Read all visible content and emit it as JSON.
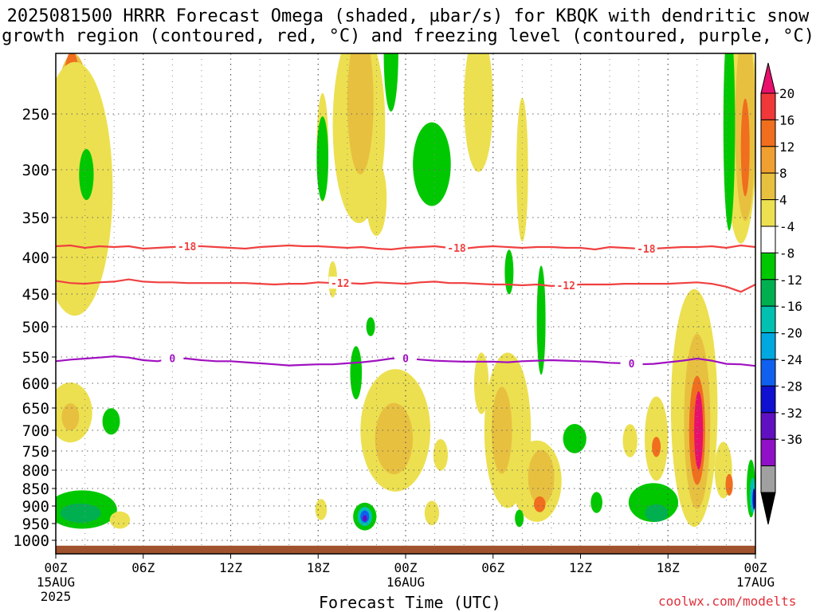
{
  "title_line1": "2025081500 HRRR Forecast Omega (shaded, µbar/s) for KBQK with dendritic snow",
  "title_line2": "growth region (contoured, red, °C) and freezing level (contoured, purple, °C)",
  "credit": "coolwx.com/modelts",
  "chart_data": {
    "type": "heatmap",
    "title": "2025081500 HRRR Forecast Omega (shaded, µbar/s) for KBQK with dendritic snow growth region (contoured, red, °C) and freezing level (contoured, purple, °C)",
    "xlabel": "Forecast Time (UTC)",
    "ylabel": "",
    "x_ticks": [
      {
        "hour": 0,
        "label": "00Z",
        "sub1": "15AUG",
        "sub2": "2025"
      },
      {
        "hour": 6,
        "label": "06Z",
        "sub1": "",
        "sub2": ""
      },
      {
        "hour": 12,
        "label": "12Z",
        "sub1": "",
        "sub2": ""
      },
      {
        "hour": 18,
        "label": "18Z",
        "sub1": "",
        "sub2": ""
      },
      {
        "hour": 24,
        "label": "00Z",
        "sub1": "16AUG",
        "sub2": ""
      },
      {
        "hour": 30,
        "label": "06Z",
        "sub1": "",
        "sub2": ""
      },
      {
        "hour": 36,
        "label": "12Z",
        "sub1": "",
        "sub2": ""
      },
      {
        "hour": 42,
        "label": "18Z",
        "sub1": "",
        "sub2": ""
      },
      {
        "hour": 48,
        "label": "00Z",
        "sub1": "17AUG",
        "sub2": ""
      }
    ],
    "xlim": [
      0,
      48
    ],
    "y_ticks": [
      "250",
      "300",
      "350",
      "400",
      "450",
      "500",
      "550",
      "600",
      "650",
      "700",
      "750",
      "800",
      "850",
      "900",
      "950",
      "1000"
    ],
    "ylim": [
      1000,
      200
    ],
    "colorbar": {
      "labels": [
        "20",
        "16",
        "12",
        "8",
        "4",
        "-4",
        "-8",
        "-12",
        "-16",
        "-20",
        "-24",
        "-28",
        "-32",
        "-36"
      ],
      "colors": [
        "#e8106c",
        "#f03838",
        "#f06e1e",
        "#f0a030",
        "#e8c040",
        "#ece050",
        "#ffffff",
        "#00c800",
        "#00b050",
        "#00c0b0",
        "#00a8e0",
        "#1060f0",
        "#1010d0",
        "#6010c0",
        "#9010c8",
        "#a0a0a0",
        "#000000"
      ]
    },
    "contours": [
      {
        "color": "#f04040",
        "level_label": "-18",
        "points": [
          [
            0,
            386
          ],
          [
            1,
            385
          ],
          [
            2,
            388
          ],
          [
            3,
            386
          ],
          [
            4,
            387
          ],
          [
            5,
            386
          ],
          [
            6,
            389
          ],
          [
            7,
            388
          ],
          [
            8,
            387
          ],
          [
            9,
            386
          ],
          [
            10,
            386
          ],
          [
            11,
            387
          ],
          [
            12,
            388
          ],
          [
            13,
            389
          ],
          [
            14,
            387
          ],
          [
            15,
            386
          ],
          [
            16,
            385
          ],
          [
            17,
            386
          ],
          [
            18,
            386
          ],
          [
            19,
            387
          ],
          [
            20,
            388
          ],
          [
            21,
            387
          ],
          [
            22,
            389
          ],
          [
            23,
            390
          ],
          [
            24,
            388
          ],
          [
            25,
            387
          ],
          [
            26,
            386
          ],
          [
            27,
            388
          ],
          [
            28,
            389
          ],
          [
            29,
            387
          ],
          [
            30,
            386
          ],
          [
            31,
            387
          ],
          [
            32,
            388
          ],
          [
            33,
            387
          ],
          [
            34,
            387
          ],
          [
            35,
            388
          ],
          [
            36,
            388
          ],
          [
            37,
            390
          ],
          [
            38,
            387
          ],
          [
            39,
            388
          ],
          [
            40,
            389
          ],
          [
            41,
            389
          ],
          [
            42,
            388
          ],
          [
            43,
            387
          ],
          [
            44,
            387
          ],
          [
            45,
            386
          ],
          [
            46,
            388
          ],
          [
            47,
            385
          ],
          [
            48,
            387
          ]
        ],
        "labels_at": [
          9,
          27.5,
          40.5
        ]
      },
      {
        "color": "#f04040",
        "level_label": "-12",
        "points": [
          [
            0,
            432
          ],
          [
            1,
            435
          ],
          [
            2,
            436
          ],
          [
            3,
            434
          ],
          [
            4,
            433
          ],
          [
            5,
            430
          ],
          [
            6,
            433
          ],
          [
            7,
            434
          ],
          [
            8,
            434
          ],
          [
            9,
            435
          ],
          [
            10,
            435
          ],
          [
            11,
            435
          ],
          [
            12,
            435
          ],
          [
            13,
            435
          ],
          [
            14,
            436
          ],
          [
            15,
            437
          ],
          [
            16,
            436
          ],
          [
            17,
            436
          ],
          [
            18,
            434
          ],
          [
            19,
            435
          ],
          [
            20,
            435
          ],
          [
            21,
            436
          ],
          [
            22,
            434
          ],
          [
            23,
            435
          ],
          [
            24,
            436
          ],
          [
            25,
            434
          ],
          [
            26,
            433
          ],
          [
            27,
            435
          ],
          [
            28,
            435
          ],
          [
            29,
            436
          ],
          [
            30,
            437
          ],
          [
            31,
            437
          ],
          [
            32,
            438
          ],
          [
            33,
            437
          ],
          [
            34,
            439
          ],
          [
            35,
            438
          ],
          [
            36,
            437
          ],
          [
            37,
            437
          ],
          [
            38,
            437
          ],
          [
            39,
            436
          ],
          [
            40,
            436
          ],
          [
            41,
            436
          ],
          [
            42,
            436
          ],
          [
            43,
            435
          ],
          [
            44,
            434
          ],
          [
            45,
            436
          ],
          [
            46,
            440
          ],
          [
            47,
            447
          ],
          [
            48,
            437
          ]
        ],
        "labels_at": [
          19.5,
          35
        ]
      },
      {
        "color": "#a010c0",
        "level_label": "0",
        "points": [
          [
            0,
            558
          ],
          [
            1,
            555
          ],
          [
            2,
            553
          ],
          [
            3,
            551
          ],
          [
            4,
            549
          ],
          [
            5,
            551
          ],
          [
            6,
            556
          ],
          [
            7,
            558
          ],
          [
            8,
            552
          ],
          [
            9,
            553
          ],
          [
            10,
            556
          ],
          [
            11,
            558
          ],
          [
            12,
            558
          ],
          [
            13,
            560
          ],
          [
            14,
            562
          ],
          [
            15,
            564
          ],
          [
            16,
            566
          ],
          [
            17,
            565
          ],
          [
            18,
            564
          ],
          [
            19,
            564
          ],
          [
            20,
            562
          ],
          [
            21,
            560
          ],
          [
            22,
            557
          ],
          [
            23,
            553
          ],
          [
            24,
            552
          ],
          [
            25,
            555
          ],
          [
            26,
            557
          ],
          [
            27,
            558
          ],
          [
            28,
            559
          ],
          [
            29,
            559
          ],
          [
            30,
            559
          ],
          [
            31,
            560
          ],
          [
            32,
            558
          ],
          [
            33,
            557
          ],
          [
            34,
            556
          ],
          [
            35,
            557
          ],
          [
            36,
            558
          ],
          [
            37,
            559
          ],
          [
            38,
            561
          ],
          [
            39,
            562
          ],
          [
            40,
            564
          ],
          [
            41,
            563
          ],
          [
            42,
            560
          ],
          [
            43,
            557
          ],
          [
            44,
            553
          ],
          [
            45,
            557
          ],
          [
            46,
            563
          ],
          [
            47,
            564
          ],
          [
            48,
            567
          ]
        ],
        "labels_at": [
          8,
          24,
          39.5
        ]
      }
    ],
    "shaded_regions": [
      {
        "value": 8,
        "t": 1.2,
        "p": 280,
        "wt": 1.4,
        "wp": 200
      },
      {
        "value": 16,
        "t": 1.1,
        "p": 250,
        "wt": 0.7,
        "wp": 120
      },
      {
        "value": 20,
        "t": 1.1,
        "p": 270,
        "wt": 0.35,
        "wp": 70
      },
      {
        "value": 4,
        "t": 1.3,
        "p": 320,
        "wt": 2.6,
        "wp": 300
      },
      {
        "value": -8,
        "t": 2.1,
        "p": 305,
        "wt": 0.5,
        "wp": 50
      },
      {
        "value": 4,
        "t": 1.0,
        "p": 660,
        "wt": 1.5,
        "wp": 130
      },
      {
        "value": 8,
        "t": 1.0,
        "p": 670,
        "wt": 0.6,
        "wp": 60
      },
      {
        "value": -8,
        "t": 3.8,
        "p": 680,
        "wt": 0.6,
        "wp": 60
      },
      {
        "value": -8,
        "t": 1.8,
        "p": 910,
        "wt": 2.4,
        "wp": 110
      },
      {
        "value": -12,
        "t": 1.7,
        "p": 920,
        "wt": 1.4,
        "wp": 55
      },
      {
        "value": 4,
        "t": 4.4,
        "p": 940,
        "wt": 0.7,
        "wp": 50
      },
      {
        "value": 4,
        "t": 18.3,
        "p": 280,
        "wt": 0.4,
        "wp": 100
      },
      {
        "value": -8,
        "t": 18.3,
        "p": 290,
        "wt": 0.4,
        "wp": 80
      },
      {
        "value": 4,
        "t": 20.8,
        "p": 260,
        "wt": 1.8,
        "wp": 260
      },
      {
        "value": 8,
        "t": 20.9,
        "p": 240,
        "wt": 0.9,
        "wp": 180
      },
      {
        "value": 4,
        "t": 22.0,
        "p": 330,
        "wt": 0.7,
        "wp": 80
      },
      {
        "value": -8,
        "t": 23.0,
        "p": 200,
        "wt": 0.5,
        "wp": 200
      },
      {
        "value": -8,
        "t": 25.8,
        "p": 295,
        "wt": 1.3,
        "wp": 80
      },
      {
        "value": 4,
        "t": 29.0,
        "p": 240,
        "wt": 1.0,
        "wp": 170
      },
      {
        "value": 4,
        "t": 32.0,
        "p": 300,
        "wt": 0.4,
        "wp": 140
      },
      {
        "value": 4,
        "t": 19.0,
        "p": 430,
        "wt": 0.3,
        "wp": 50
      },
      {
        "value": -8,
        "t": 21.6,
        "p": 500,
        "wt": 0.3,
        "wp": 30
      },
      {
        "value": 4,
        "t": 23.3,
        "p": 700,
        "wt": 2.4,
        "wp": 280
      },
      {
        "value": 8,
        "t": 23.2,
        "p": 720,
        "wt": 1.3,
        "wp": 170
      },
      {
        "value": -8,
        "t": 20.6,
        "p": 580,
        "wt": 0.4,
        "wp": 100
      },
      {
        "value": 4,
        "t": 18.2,
        "p": 910,
        "wt": 0.4,
        "wp": 60
      },
      {
        "value": -8,
        "t": 21.2,
        "p": 930,
        "wt": 0.8,
        "wp": 80
      },
      {
        "value": -16,
        "t": 21.2,
        "p": 930,
        "wt": 0.5,
        "wp": 55
      },
      {
        "value": -24,
        "t": 21.2,
        "p": 930,
        "wt": 0.3,
        "wp": 35
      },
      {
        "value": -32,
        "t": 21.2,
        "p": 935,
        "wt": 0.15,
        "wp": 18
      },
      {
        "value": 4,
        "t": 25.8,
        "p": 920,
        "wt": 0.5,
        "wp": 70
      },
      {
        "value": 4,
        "t": 26.4,
        "p": 760,
        "wt": 0.5,
        "wp": 80
      },
      {
        "value": 4,
        "t": 29.2,
        "p": 600,
        "wt": 0.5,
        "wp": 120
      },
      {
        "value": 4,
        "t": 31.0,
        "p": 700,
        "wt": 1.6,
        "wp": 350
      },
      {
        "value": 8,
        "t": 30.6,
        "p": 700,
        "wt": 0.7,
        "wp": 200
      },
      {
        "value": -8,
        "t": 31.1,
        "p": 420,
        "wt": 0.3,
        "wp": 60
      },
      {
        "value": -8,
        "t": 33.3,
        "p": 490,
        "wt": 0.3,
        "wp": 170
      },
      {
        "value": 4,
        "t": 33.0,
        "p": 830,
        "wt": 1.7,
        "wp": 220
      },
      {
        "value": 8,
        "t": 33.3,
        "p": 820,
        "wt": 0.9,
        "wp": 150
      },
      {
        "value": 16,
        "t": 33.2,
        "p": 895,
        "wt": 0.4,
        "wp": 45
      },
      {
        "value": -8,
        "t": 31.8,
        "p": 935,
        "wt": 0.3,
        "wp": 50
      },
      {
        "value": -8,
        "t": 35.6,
        "p": 720,
        "wt": 0.8,
        "wp": 70
      },
      {
        "value": -8,
        "t": 37.1,
        "p": 890,
        "wt": 0.4,
        "wp": 60
      },
      {
        "value": 4,
        "t": 39.4,
        "p": 725,
        "wt": 0.5,
        "wp": 80
      },
      {
        "value": 4,
        "t": 41.2,
        "p": 720,
        "wt": 0.8,
        "wp": 200
      },
      {
        "value": 16,
        "t": 41.2,
        "p": 740,
        "wt": 0.3,
        "wp": 50
      },
      {
        "value": -8,
        "t": 41.0,
        "p": 890,
        "wt": 1.7,
        "wp": 110
      },
      {
        "value": -12,
        "t": 41.2,
        "p": 920,
        "wt": 0.8,
        "wp": 50
      },
      {
        "value": 4,
        "t": 43.8,
        "p": 650,
        "wt": 1.6,
        "wp": 480
      },
      {
        "value": 8,
        "t": 44.0,
        "p": 680,
        "wt": 0.9,
        "wp": 380
      },
      {
        "value": 16,
        "t": 44.0,
        "p": 700,
        "wt": 0.55,
        "wp": 250
      },
      {
        "value": 20,
        "t": 44.1,
        "p": 700,
        "wt": 0.3,
        "wp": 180
      },
      {
        "value": 4,
        "t": 47.0,
        "p": 260,
        "wt": 1.1,
        "wp": 370
      },
      {
        "value": 8,
        "t": 47.3,
        "p": 260,
        "wt": 0.7,
        "wp": 250
      },
      {
        "value": 16,
        "t": 47.3,
        "p": 280,
        "wt": 0.3,
        "wp": 90
      },
      {
        "value": -8,
        "t": 46.2,
        "p": 260,
        "wt": 0.4,
        "wp": 300
      },
      {
        "value": 4,
        "t": 45.8,
        "p": 800,
        "wt": 0.6,
        "wp": 150
      },
      {
        "value": 16,
        "t": 46.2,
        "p": 840,
        "wt": 0.25,
        "wp": 60
      },
      {
        "value": -8,
        "t": 47.7,
        "p": 850,
        "wt": 0.3,
        "wp": 160
      },
      {
        "value": -16,
        "t": 47.8,
        "p": 870,
        "wt": 0.2,
        "wp": 100
      },
      {
        "value": -28,
        "t": 47.9,
        "p": 880,
        "wt": 0.1,
        "wp": 60
      }
    ],
    "ground_layer": {
      "color": "#a0522d",
      "from_pressure": 1012
    }
  }
}
